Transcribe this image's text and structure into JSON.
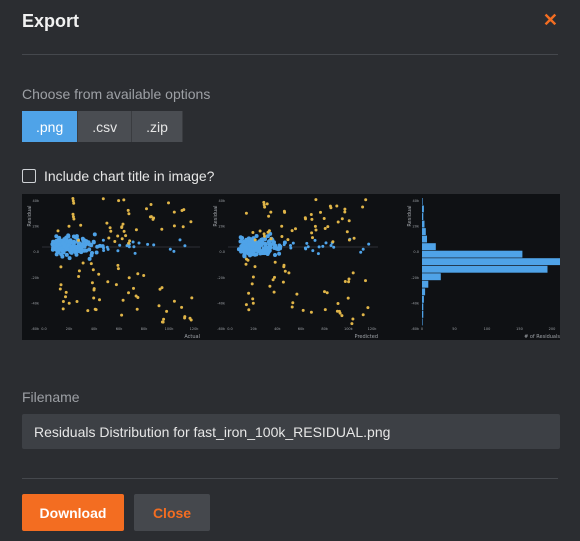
{
  "dialog": {
    "title": "Export",
    "close_icon": "close-x-icon",
    "accent_color": "#f36d21",
    "active_color": "#4fa3e8"
  },
  "options": {
    "label": "Choose from available options",
    "formats": [
      {
        "label": ".png",
        "active": true
      },
      {
        "label": ".csv",
        "active": false
      },
      {
        "label": ".zip",
        "active": false
      }
    ],
    "include_title_label": "Include chart title in image?",
    "include_title_checked": false
  },
  "chart_data": [
    {
      "type": "scatter",
      "ylabel": "Residual",
      "xlabel": "Actual",
      "x_ticks": [
        "0.0",
        "20k",
        "40k",
        "60k",
        "80k",
        "100k",
        "120k"
      ],
      "y_ticks": [
        "40k",
        "20k",
        "0.0",
        "-20k",
        "-40k",
        "-60k"
      ],
      "series": [
        {
          "color": "#4fa3e8"
        },
        {
          "color": "#e0b548"
        }
      ]
    },
    {
      "type": "scatter",
      "ylabel": "Residual",
      "xlabel": "Predicted",
      "x_ticks": [
        "0.0",
        "20k",
        "40k",
        "60k",
        "80k",
        "100k",
        "120k"
      ],
      "y_ticks": [
        "40k",
        "20k",
        "0.0",
        "-20k",
        "-40k",
        "-60k"
      ],
      "series": [
        {
          "color": "#4fa3e8"
        },
        {
          "color": "#e0b548"
        }
      ]
    },
    {
      "type": "bar",
      "orientation": "horizontal",
      "ylabel": "Residual",
      "xlabel": "# of Residuals",
      "x_ticks": [
        "0",
        "50",
        "100",
        "150",
        "200"
      ],
      "y_ticks": [
        "40k",
        "20k",
        "0.0",
        "-20k",
        "-40k",
        "-60k"
      ],
      "values": [
        1,
        3,
        2,
        4,
        6,
        8,
        22,
        160,
        220,
        200,
        30,
        10,
        5,
        3,
        2,
        2,
        1
      ],
      "xlim": [
        0,
        220
      ],
      "color": "#4fa3e8"
    }
  ],
  "filename": {
    "label": "Filename",
    "value": "Residuals Distribution for fast_iron_100k_RESIDUAL.png"
  },
  "footer": {
    "download_label": "Download",
    "close_label": "Close"
  }
}
